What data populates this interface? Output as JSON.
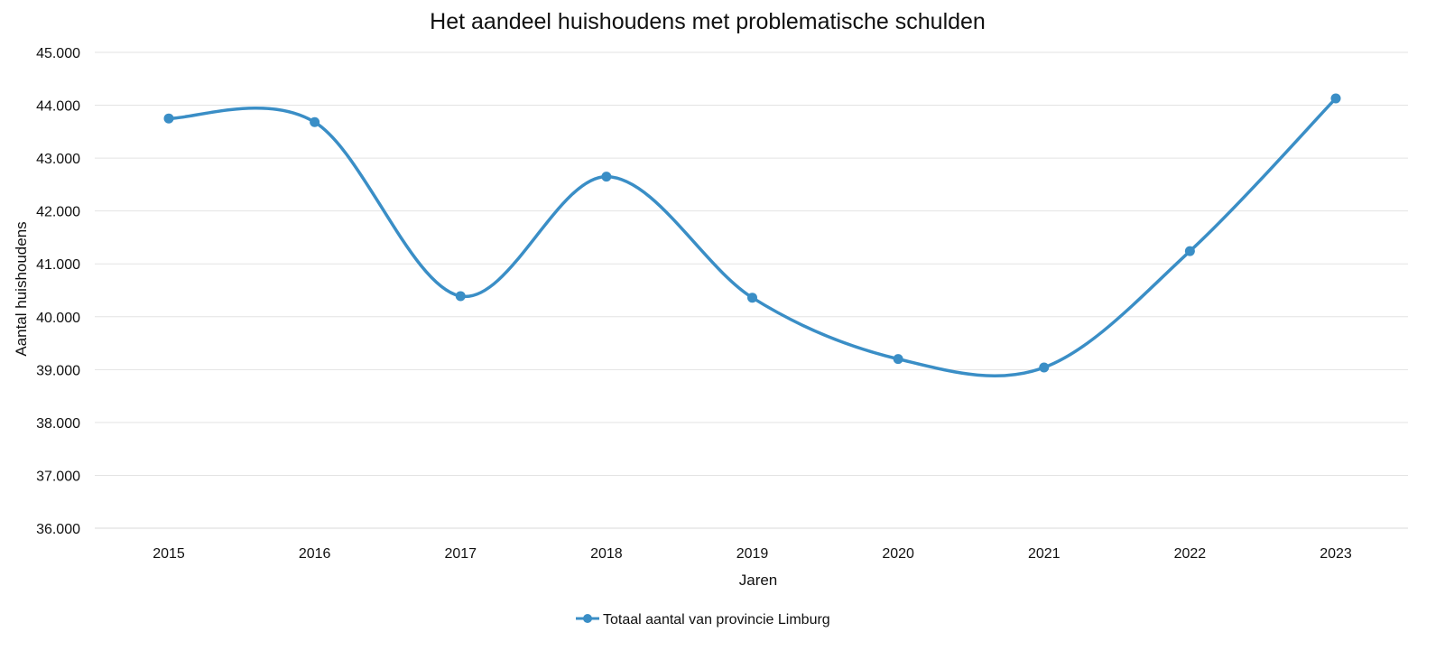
{
  "chart_data": {
    "type": "line",
    "title": "Het aandeel huishoudens met problematische schulden",
    "xlabel": "Jaren",
    "ylabel": "Aantal huishoudens",
    "categories": [
      "2015",
      "2016",
      "2017",
      "2018",
      "2019",
      "2020",
      "2021",
      "2022",
      "2023"
    ],
    "series": [
      {
        "name": "Totaal aantal van provincie Limburg",
        "color": "#3a8ec6",
        "values": [
          43750,
          43680,
          40390,
          42650,
          40360,
          39200,
          39040,
          41240,
          44130
        ]
      }
    ],
    "ylim": [
      36000,
      45000
    ],
    "yticks": [
      36000,
      37000,
      38000,
      39000,
      40000,
      41000,
      42000,
      43000,
      44000,
      45000
    ],
    "ytick_labels": [
      "36.000",
      "37.000",
      "38.000",
      "39.000",
      "40.000",
      "41.000",
      "42.000",
      "43.000",
      "44.000",
      "45.000"
    ],
    "grid": true,
    "smooth": true,
    "markers": true,
    "legend_position": "bottom"
  }
}
